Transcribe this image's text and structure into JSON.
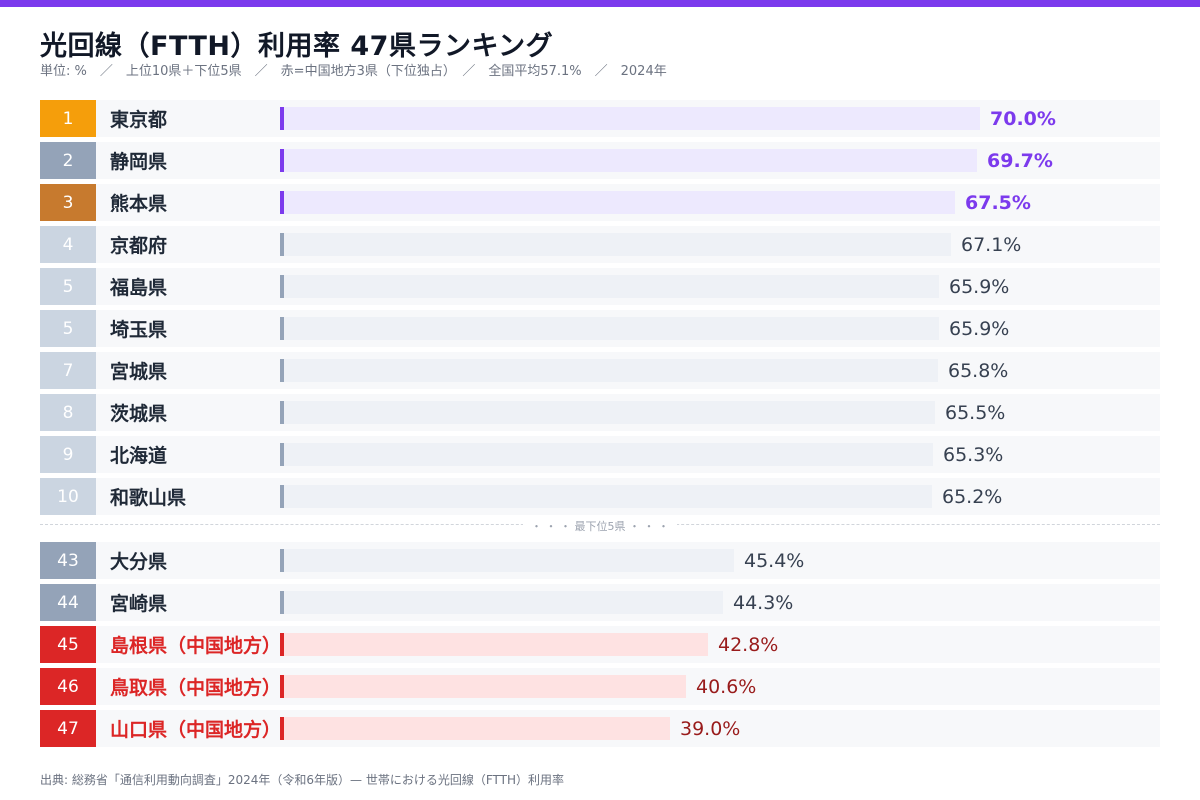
{
  "header": {
    "title": "光回線（FTTH）利用率 47県ランキング",
    "subtitle": "単位: %　／　上位10県＋下位5県　／　赤=中国地方3県（下位独占）　／　全国平均57.1%　／　2024年"
  },
  "divider_label": "・ ・ ・ 最下位5県 ・ ・ ・",
  "source": "出典: 総務省「通信利用動向調査」2024年（令和6年版）— 世帯における光回線（FTTH）利用率",
  "colors": {
    "accent": "#7c3aed",
    "gold": "#f59e0b",
    "silver": "#94a3b8",
    "bronze": "#c77a2e",
    "rank_light": "#cbd5e1",
    "rank_mid": "#94a3b8",
    "red": "#dc2626",
    "purple_track": "#ede9fe",
    "gray_track": "#eef1f6",
    "red_track": "#fee2e2"
  },
  "chart_data": {
    "type": "bar",
    "orientation": "horizontal",
    "unit": "%",
    "xlim": [
      0,
      100
    ],
    "rows": [
      {
        "rank": "1",
        "name": "東京都",
        "value": 70.0,
        "label": "70.0%",
        "group": "gold"
      },
      {
        "rank": "2",
        "name": "静岡県",
        "value": 69.7,
        "label": "69.7%",
        "group": "silver"
      },
      {
        "rank": "3",
        "name": "熊本県",
        "value": 67.5,
        "label": "67.5%",
        "group": "bronze"
      },
      {
        "rank": "4",
        "name": "京都府",
        "value": 67.1,
        "label": "67.1%",
        "group": "top"
      },
      {
        "rank": "5",
        "name": "福島県",
        "value": 65.9,
        "label": "65.9%",
        "group": "top"
      },
      {
        "rank": "5",
        "name": "埼玉県",
        "value": 65.9,
        "label": "65.9%",
        "group": "top"
      },
      {
        "rank": "7",
        "name": "宮城県",
        "value": 65.8,
        "label": "65.8%",
        "group": "top"
      },
      {
        "rank": "8",
        "name": "茨城県",
        "value": 65.5,
        "label": "65.5%",
        "group": "top"
      },
      {
        "rank": "9",
        "name": "北海道",
        "value": 65.3,
        "label": "65.3%",
        "group": "top"
      },
      {
        "rank": "10",
        "name": "和歌山県",
        "value": 65.2,
        "label": "65.2%",
        "group": "top"
      },
      {
        "rank": "43",
        "name": "大分県",
        "value": 45.4,
        "label": "45.4%",
        "group": "bottom"
      },
      {
        "rank": "44",
        "name": "宮崎県",
        "value": 44.3,
        "label": "44.3%",
        "group": "bottom"
      },
      {
        "rank": "45",
        "name": "島根県（中国地方）",
        "value": 42.8,
        "label": "42.8%",
        "group": "chugoku"
      },
      {
        "rank": "46",
        "name": "鳥取県（中国地方）",
        "value": 40.6,
        "label": "40.6%",
        "group": "chugoku"
      },
      {
        "rank": "47",
        "name": "山口県（中国地方）",
        "value": 39.0,
        "label": "39.0%",
        "group": "chugoku"
      }
    ]
  }
}
